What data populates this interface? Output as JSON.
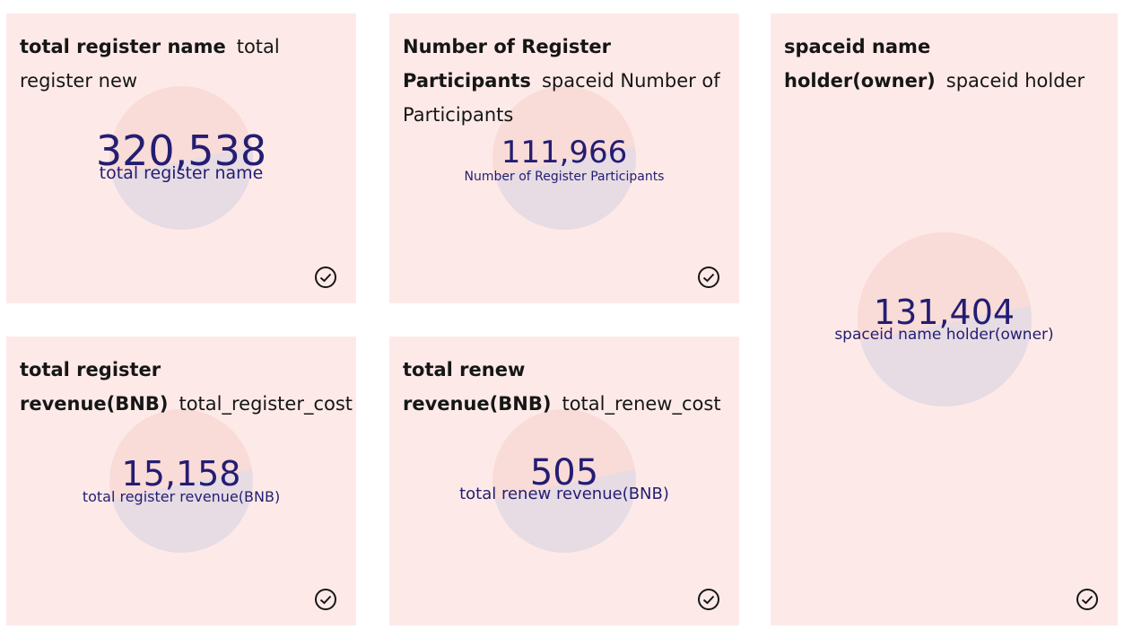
{
  "cards": [
    {
      "title": "total register name",
      "subtitle": "total register new",
      "value": "320,538",
      "label": "total register name"
    },
    {
      "title": "Number of Register Participants",
      "subtitle": "spaceid Number of Participants",
      "value": "111,966",
      "label": "Number of Register Participants"
    },
    {
      "title": "spaceid name holder(owner)",
      "subtitle": "spaceid holder",
      "value": "131,404",
      "label": "spaceid name holder(owner)"
    },
    {
      "title": "total register revenue(BNB)",
      "subtitle": "total_register_cost",
      "value": "15,158",
      "label": "total register revenue(BNB)"
    },
    {
      "title": "total renew revenue(BNB)",
      "subtitle": "total_renew_cost",
      "value": "505",
      "label": "total renew revenue(BNB)"
    }
  ]
}
